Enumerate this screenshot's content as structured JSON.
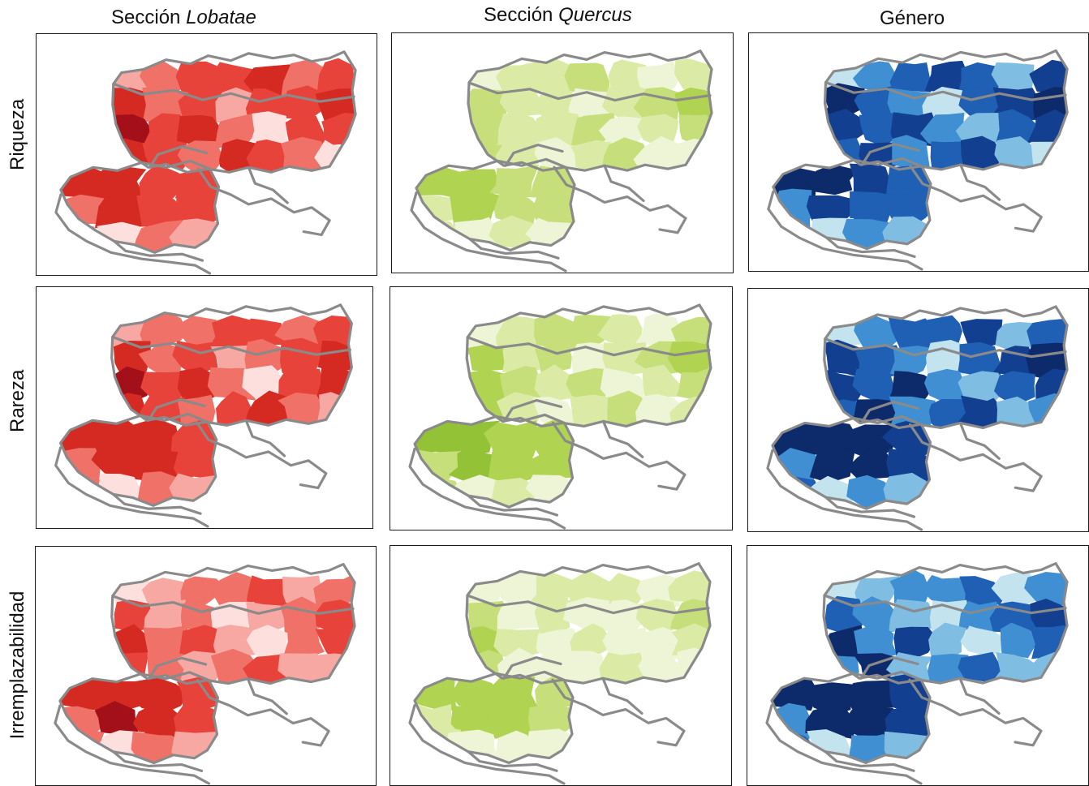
{
  "columns": [
    {
      "prefix": "Sección ",
      "italic": "Lobatae"
    },
    {
      "prefix": "Sección ",
      "italic": "Quercus"
    },
    {
      "prefix": "Género",
      "italic": ""
    }
  ],
  "rows": [
    "Riqueza",
    "Rareza",
    "Irremplazabilidad"
  ],
  "palettes": {
    "red": [
      "#fde0de",
      "#f7a8a2",
      "#f07167",
      "#e8433a",
      "#d42a22",
      "#a3101a"
    ],
    "green": [
      "#eef5d6",
      "#dbeba6",
      "#c6df7a",
      "#b0d352",
      "#93c236"
    ],
    "blue": [
      "#c3e3ef",
      "#80bde3",
      "#3f8fd2",
      "#1f5fb4",
      "#123f8f",
      "#0d2a6b"
    ]
  },
  "outline_color": "#8a8a8a",
  "panels": [
    {
      "row": 0,
      "col": 0,
      "palette": "red",
      "north": [
        1,
        2,
        3,
        3,
        4,
        2,
        3,
        4,
        2,
        3,
        1,
        3,
        3,
        4,
        5,
        3,
        4,
        2,
        0,
        3,
        3,
        4,
        3,
        2,
        4,
        3,
        2,
        0
      ],
      "south": [
        4,
        4,
        3,
        3,
        2,
        4,
        3,
        3,
        2,
        0,
        2,
        1
      ]
    },
    {
      "row": 0,
      "col": 1,
      "palette": "green",
      "north": [
        0,
        1,
        1,
        2,
        1,
        0,
        1,
        2,
        1,
        1,
        0,
        1,
        2,
        3,
        2,
        1,
        1,
        2,
        0,
        1,
        2,
        2,
        1,
        0,
        1,
        2,
        0,
        0
      ],
      "south": [
        3,
        3,
        2,
        2,
        1,
        3,
        2,
        2,
        1,
        0,
        1,
        0
      ]
    },
    {
      "row": 0,
      "col": 2,
      "palette": "blue",
      "north": [
        0,
        2,
        3,
        4,
        3,
        1,
        4,
        5,
        3,
        2,
        0,
        3,
        4,
        5,
        4,
        3,
        4,
        2,
        1,
        3,
        4,
        3,
        4,
        2,
        3,
        4,
        1,
        0
      ],
      "south": [
        5,
        5,
        4,
        3,
        2,
        4,
        3,
        3,
        2,
        0,
        2,
        1
      ]
    },
    {
      "row": 1,
      "col": 0,
      "palette": "red",
      "north": [
        1,
        2,
        2,
        3,
        3,
        2,
        3,
        4,
        2,
        3,
        1,
        2,
        3,
        4,
        5,
        3,
        4,
        2,
        0,
        3,
        4,
        4,
        3,
        2,
        3,
        4,
        2,
        1
      ],
      "south": [
        4,
        4,
        4,
        3,
        2,
        4,
        4,
        3,
        2,
        0,
        2,
        1
      ]
    },
    {
      "row": 1,
      "col": 1,
      "palette": "green",
      "north": [
        0,
        1,
        2,
        2,
        1,
        0,
        2,
        3,
        1,
        2,
        0,
        1,
        2,
        3,
        3,
        2,
        1,
        2,
        0,
        1,
        2,
        3,
        1,
        0,
        1,
        2,
        0,
        1
      ],
      "south": [
        4,
        4,
        3,
        3,
        2,
        4,
        3,
        3,
        2,
        0,
        1,
        0
      ]
    },
    {
      "row": 1,
      "col": 2,
      "palette": "blue",
      "north": [
        0,
        2,
        3,
        3,
        4,
        1,
        3,
        4,
        3,
        2,
        0,
        3,
        4,
        5,
        4,
        3,
        5,
        2,
        1,
        3,
        4,
        3,
        5,
        2,
        3,
        4,
        1,
        2
      ],
      "south": [
        5,
        5,
        5,
        4,
        2,
        5,
        5,
        4,
        3,
        0,
        2,
        1
      ]
    },
    {
      "row": 2,
      "col": 0,
      "palette": "red",
      "north": [
        0,
        1,
        2,
        2,
        3,
        1,
        2,
        3,
        1,
        2,
        0,
        1,
        2,
        3,
        4,
        2,
        3,
        1,
        0,
        2,
        3,
        3,
        2,
        1,
        2,
        3,
        1,
        1
      ],
      "south": [
        4,
        4,
        4,
        3,
        2,
        5,
        4,
        3,
        2,
        0,
        2,
        1
      ]
    },
    {
      "row": 2,
      "col": 1,
      "palette": "green",
      "north": [
        0,
        0,
        1,
        1,
        1,
        0,
        1,
        2,
        0,
        1,
        0,
        0,
        1,
        2,
        3,
        1,
        0,
        1,
        0,
        0,
        1,
        2,
        0,
        0,
        0,
        1,
        0,
        0
      ],
      "south": [
        3,
        3,
        3,
        2,
        1,
        3,
        3,
        2,
        1,
        0,
        0,
        0
      ]
    },
    {
      "row": 2,
      "col": 2,
      "palette": "blue",
      "north": [
        0,
        1,
        2,
        2,
        3,
        0,
        2,
        3,
        2,
        1,
        0,
        2,
        3,
        4,
        5,
        2,
        4,
        1,
        0,
        2,
        3,
        2,
        5,
        1,
        2,
        3,
        1,
        1
      ],
      "south": [
        5,
        5,
        5,
        4,
        2,
        5,
        5,
        4,
        3,
        0,
        2,
        1
      ]
    }
  ]
}
